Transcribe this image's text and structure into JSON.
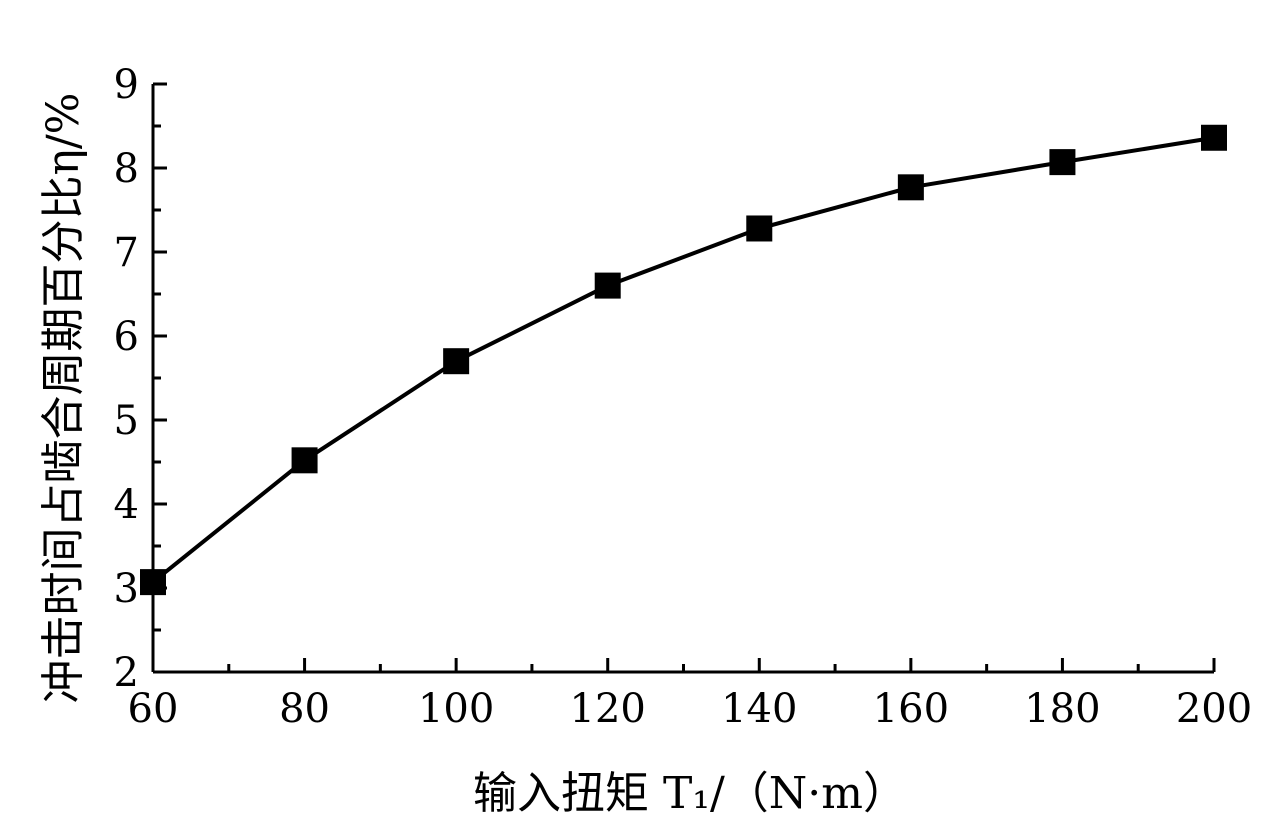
{
  "chart_data": {
    "type": "line",
    "title": "",
    "xlabel": "输入扭矩 T₁/（N·m）",
    "ylabel": "冲击时间占啮合周期百分比η/%",
    "x": [
      60,
      80,
      100,
      120,
      140,
      160,
      180,
      200
    ],
    "series": [
      {
        "values": [
          3.07,
          4.52,
          5.7,
          6.6,
          7.28,
          7.77,
          8.07,
          8.36
        ],
        "marker": "square",
        "color": "#000000"
      }
    ],
    "xlim": [
      60,
      200
    ],
    "ylim": [
      2,
      9
    ],
    "xticks": [
      60,
      80,
      100,
      120,
      140,
      160,
      180,
      200
    ],
    "yticks": [
      2,
      3,
      4,
      5,
      6,
      7,
      8,
      9
    ],
    "xtick_labels": [
      "60",
      "80",
      "100",
      "120",
      "140",
      "160",
      "180",
      "200"
    ],
    "ytick_labels": [
      "2",
      "3",
      "4",
      "5",
      "6",
      "7",
      "8",
      "9"
    ],
    "grid": false,
    "legend": "none"
  }
}
